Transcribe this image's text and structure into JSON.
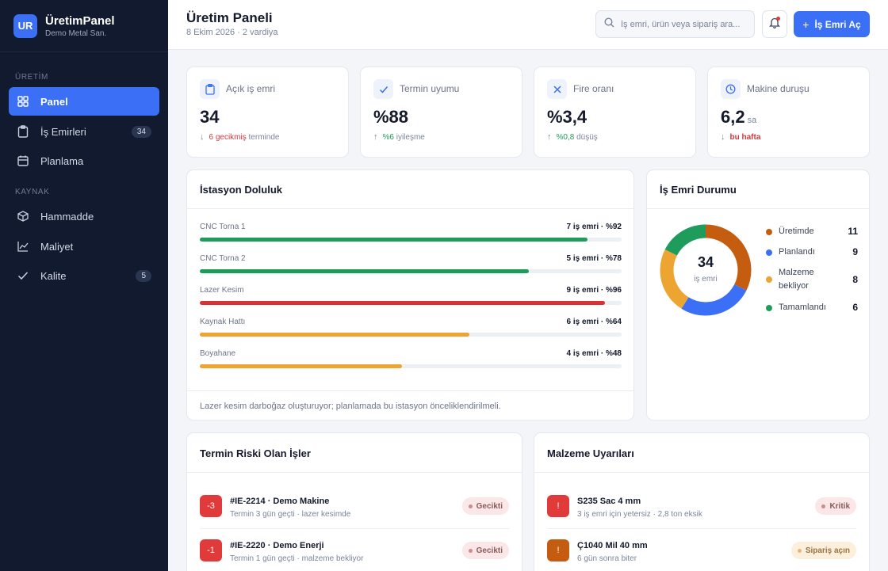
{
  "brand": {
    "logo": "UR",
    "name": "ÜretimPanel",
    "subtitle": "Demo Metal San."
  },
  "sidebar": {
    "sections": [
      {
        "label": "ÜRETİM"
      },
      {
        "label": "KAYNAK"
      }
    ],
    "items": [
      {
        "label": "Panel",
        "icon": "grid-icon",
        "active": true
      },
      {
        "label": "İş Emirleri",
        "icon": "clipboard-icon",
        "badge": "34"
      },
      {
        "label": "Planlama",
        "icon": "calendar-icon"
      },
      {
        "label": "Hammadde",
        "icon": "cube-icon"
      },
      {
        "label": "Maliyet",
        "icon": "chart-line-icon"
      },
      {
        "label": "Kalite",
        "icon": "check-icon",
        "badge": "5"
      }
    ]
  },
  "header": {
    "title": "Üretim Paneli",
    "subtitle": "8 Ekim 2026 · 2 vardiya",
    "search_placeholder": "İş emri, ürün veya sipariş ara...",
    "primary_button": "İş Emri Aç"
  },
  "kpis": [
    {
      "label": "Açık iş emri",
      "value": "34",
      "unit": "",
      "arrow": "↓",
      "highlight": "6 gecikmiş",
      "note": "terminde",
      "icon": "clipboard-icon"
    },
    {
      "label": "Termin uyumu",
      "value": "%88",
      "unit": "",
      "arrow": "↑",
      "highlight": "%6",
      "note": "iyileşme",
      "icon": "check-icon"
    },
    {
      "label": "Fire oranı",
      "value": "%3,4",
      "unit": "",
      "arrow": "↑",
      "highlight": "%0,8",
      "note": "düşüş",
      "icon": "x-icon"
    },
    {
      "label": "Makine duruşu",
      "value": "6,2",
      "unit": "sa",
      "arrow": "↓",
      "highlight": "bu hafta",
      "note": "",
      "icon": "clock-icon"
    }
  ],
  "stations": {
    "title": "İstasyon Doluluk",
    "items": [
      {
        "name": "CNC Torna 1",
        "value_label": "7 iş emri · %92",
        "percent": 92,
        "color": "#1f9c5c"
      },
      {
        "name": "CNC Torna 2",
        "value_label": "5 iş emri · %78",
        "percent": 78,
        "color": "#1f9c5c"
      },
      {
        "name": "Lazer Kesim",
        "value_label": "9 iş emri · %96",
        "percent": 96,
        "color": "#d63434"
      },
      {
        "name": "Kaynak Hattı",
        "value_label": "6 iş emri · %64",
        "percent": 64,
        "color": "#eda532"
      },
      {
        "name": "Boyahane",
        "value_label": "4 iş emri · %48",
        "percent": 48,
        "color": "#eda532"
      }
    ],
    "footer": "Lazer kesim darboğaz oluşturuyor; planlamada bu istasyon önceliklendirilmeli."
  },
  "order_status": {
    "title": "İş Emri Durumu",
    "total": "34",
    "total_label": "iş emri",
    "chart_data": {
      "type": "pie",
      "categories": [
        "Üretimde",
        "Planlandı",
        "Malzeme bekliyor",
        "Tamamlandı"
      ],
      "values": [
        11,
        9,
        8,
        6
      ],
      "colors": [
        "#c45d0f",
        "#3a6ff6",
        "#eda532",
        "#1f9c5c"
      ]
    },
    "legend": [
      {
        "label": "Üretimde",
        "count": "11",
        "color": "#c45d0f"
      },
      {
        "label": "Planlandı",
        "count": "9",
        "color": "#3a6ff6"
      },
      {
        "label": "Malzeme bekliyor",
        "count": "8",
        "color": "#eda532"
      },
      {
        "label": "Tamamlandı",
        "count": "6",
        "color": "#1f9c5c"
      }
    ]
  },
  "risk": {
    "title": "Termin Riski Olan İşler",
    "rows": [
      {
        "badge": "-3",
        "title": "#IE-2214 · Demo Makine",
        "subtitle": "Termin 3 gün geçti · lazer kesimde",
        "status": "Gecikti"
      },
      {
        "badge": "-1",
        "title": "#IE-2220 · Demo Enerji",
        "subtitle": "Termin 1 gün geçti · malzeme bekliyor",
        "status": "Gecikti"
      }
    ]
  },
  "materials": {
    "title": "Malzeme Uyarıları",
    "rows": [
      {
        "badge": "!",
        "title": "S235 Sac 4 mm",
        "subtitle": "3 iş emri için yetersiz · 2,8 ton eksik",
        "status": "Kritik",
        "tone": "red"
      },
      {
        "badge": "!",
        "title": "Ç1040 Mil 40 mm",
        "subtitle": "6 gün sonra biter",
        "status": "Sipariş açın",
        "tone": "amber"
      }
    ]
  }
}
